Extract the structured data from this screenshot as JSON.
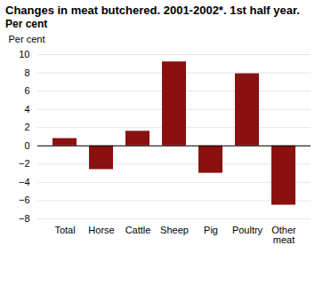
{
  "chart_data": {
    "type": "bar",
    "title": "Changes in meat butchered. 2001-2002*. 1st half year.",
    "subtitle": "Per cent",
    "ylabel": "Per cent",
    "categories": [
      "Total",
      "Horse",
      "Cattle",
      "Sheep",
      "Pig",
      "Poultry",
      "Other\nmeat"
    ],
    "values": [
      0.8,
      -2.6,
      1.6,
      9.2,
      -3.0,
      7.9,
      -6.5
    ],
    "color": "#8B1010",
    "ylim": [
      -8,
      10
    ],
    "yticks": [
      -8,
      -6,
      -4,
      -2,
      0,
      2,
      4,
      6,
      8,
      10
    ],
    "grid": true
  }
}
